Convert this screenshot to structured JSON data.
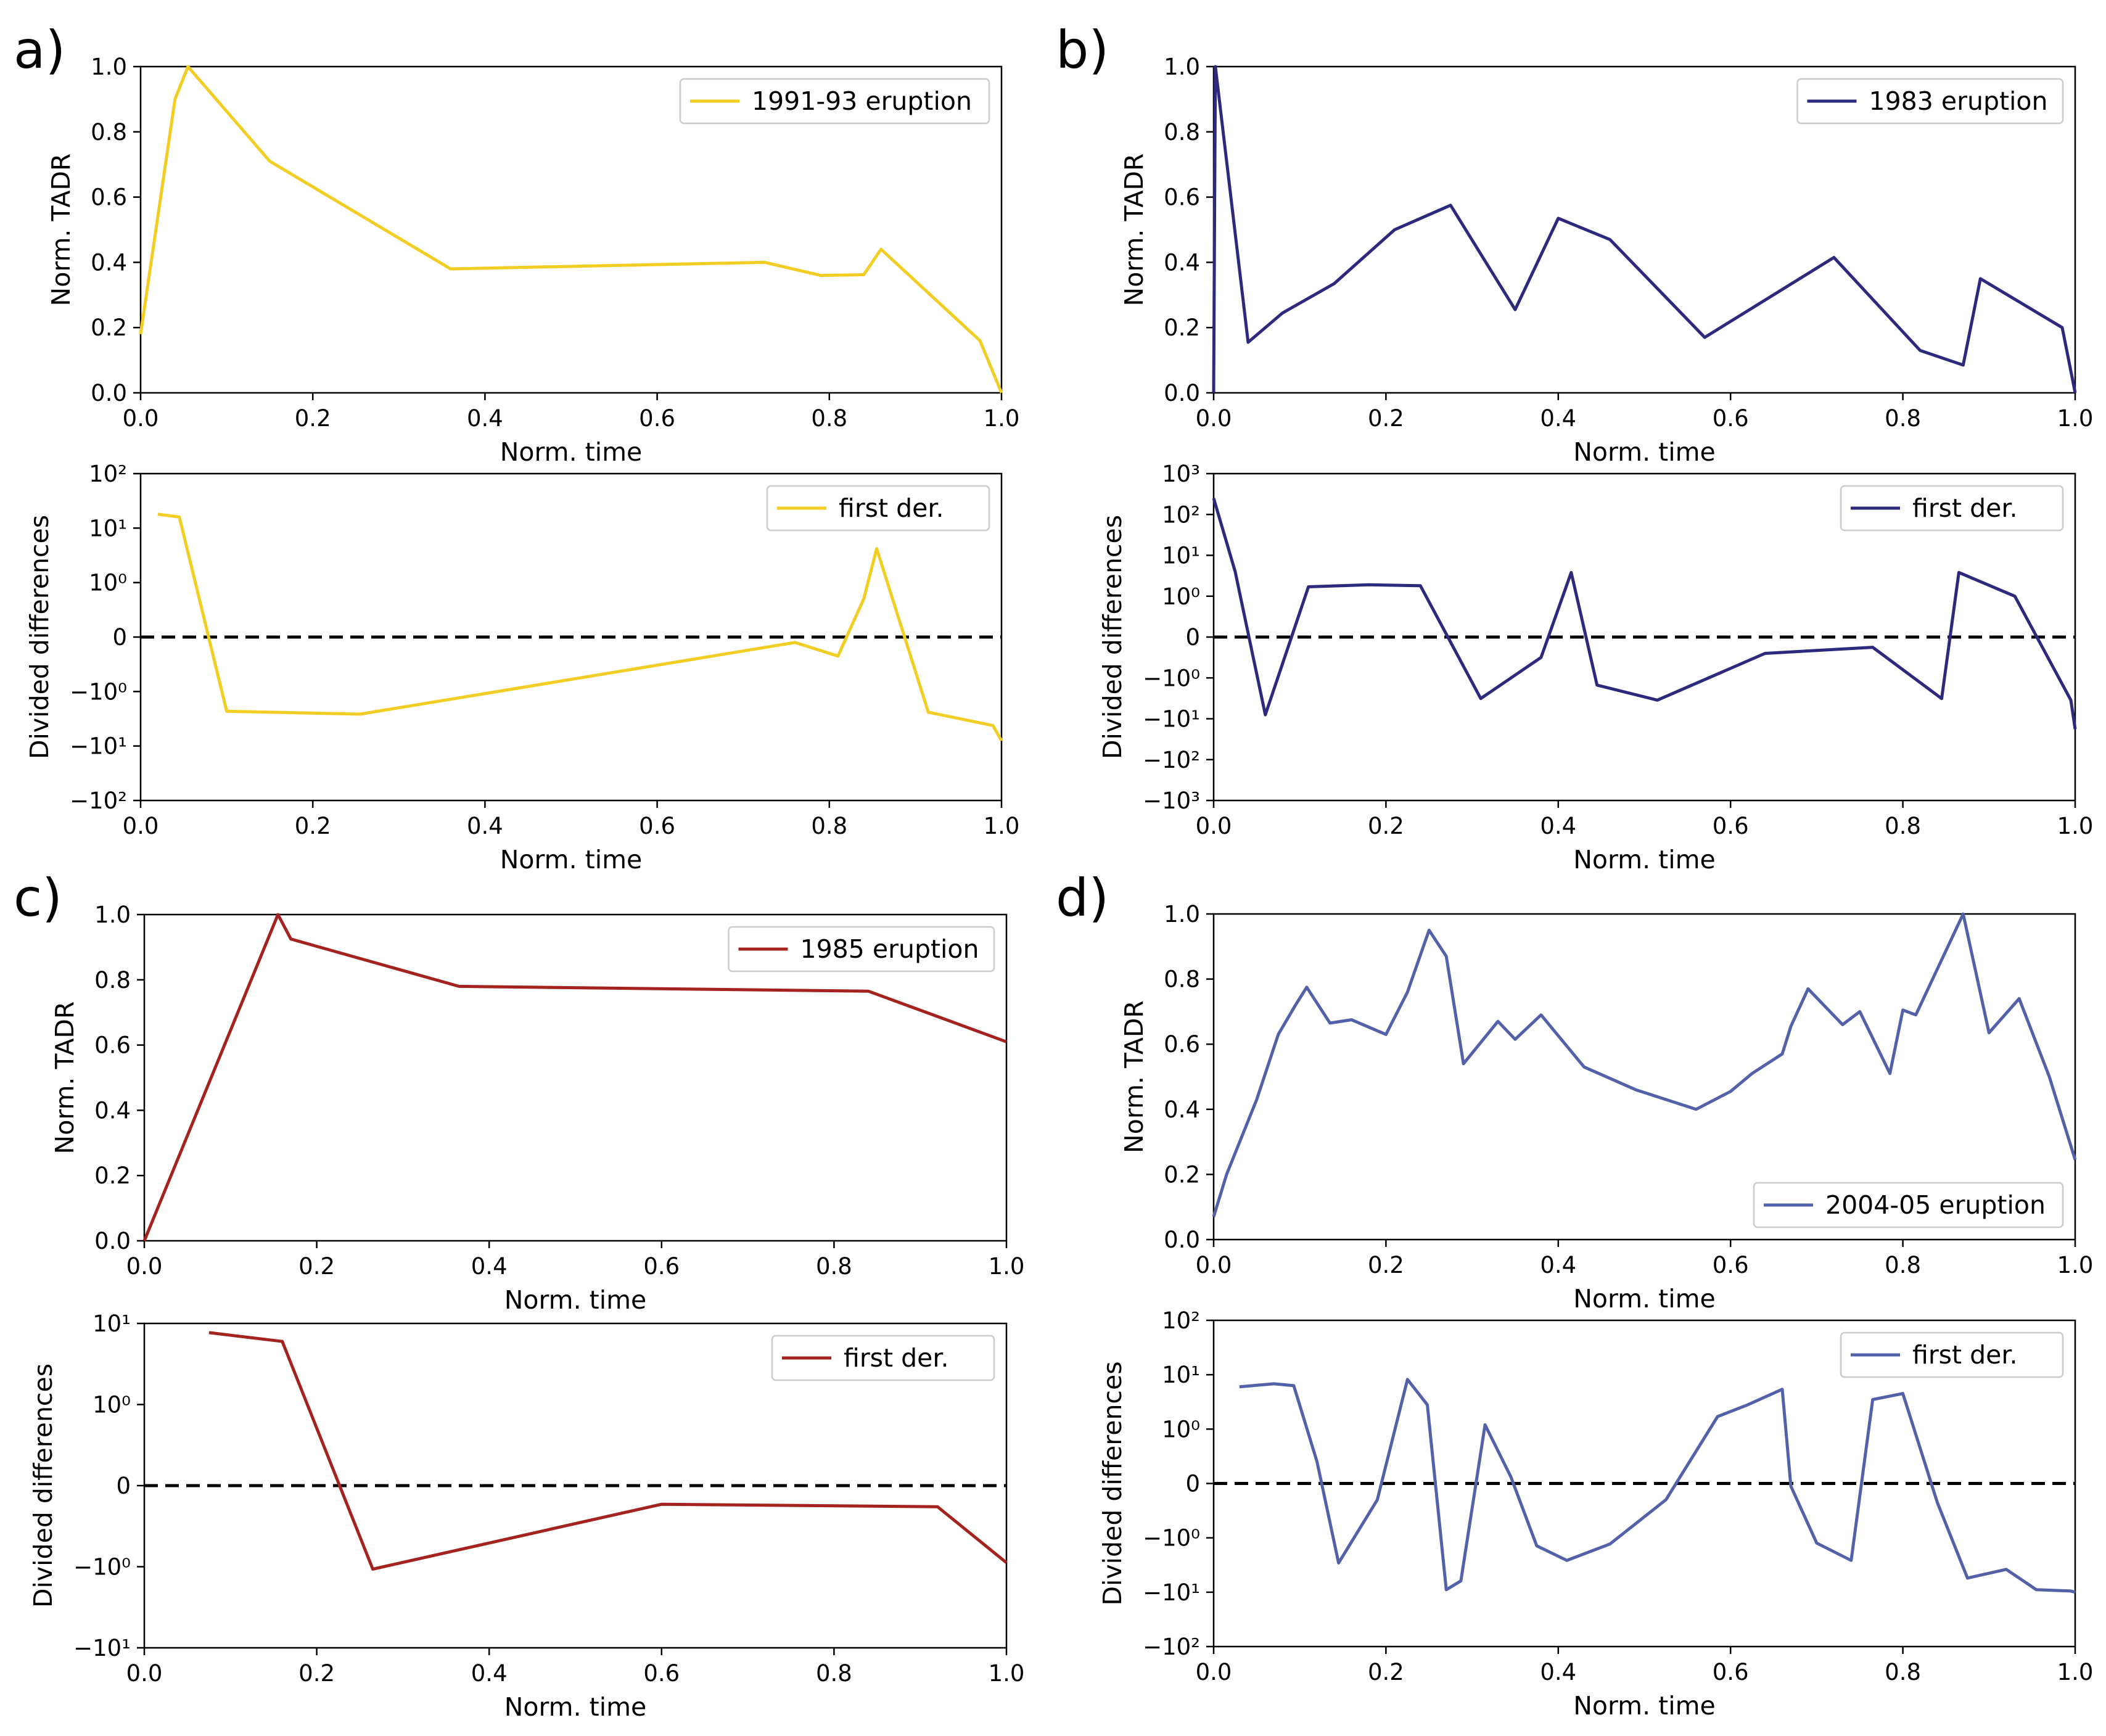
{
  "figure": {
    "axis_labels": {
      "x": "Norm. time",
      "y_tadr": "Norm. TADR",
      "y_der": "Divided differences"
    }
  },
  "panels": [
    {
      "label": "a)",
      "color": "#F2CE24",
      "top": {
        "legend": "1991-93 eruption",
        "legend_pos": "top-right",
        "x": [
          0.0,
          0.04,
          0.055,
          0.15,
          0.36,
          0.725,
          0.79,
          0.84,
          0.86,
          0.975,
          1.0
        ],
        "y": [
          0.18,
          0.9,
          1.0,
          0.71,
          0.38,
          0.4,
          0.36,
          0.362,
          0.44,
          0.16,
          0.0
        ]
      },
      "bottom": {
        "legend": "first der.",
        "legend_pos": "top-right",
        "ticks": [
          -100,
          -10,
          -1,
          0,
          1,
          10,
          100
        ],
        "tick_labels": [
          "−10²",
          "−10¹",
          "−10⁰",
          "0",
          "10⁰",
          "10¹",
          "10²"
        ],
        "ylim": [
          -100,
          100
        ],
        "x": [
          0.02,
          0.045,
          0.1,
          0.255,
          0.76,
          0.81,
          0.84,
          0.855,
          0.915,
          0.99,
          1.0
        ],
        "y": [
          18,
          16,
          -2.3,
          -2.6,
          -0.1,
          -0.35,
          0.7,
          4.2,
          -2.4,
          -4.2,
          -8
        ]
      }
    },
    {
      "label": "b)",
      "color": "#2D2A7E",
      "top": {
        "legend": "1983 eruption",
        "legend_pos": "top-right",
        "x": [
          0.0,
          0.002,
          0.04,
          0.08,
          0.14,
          0.21,
          0.275,
          0.35,
          0.4,
          0.46,
          0.57,
          0.72,
          0.82,
          0.87,
          0.89,
          0.985,
          1.0
        ],
        "y": [
          0.0,
          1.0,
          0.155,
          0.245,
          0.335,
          0.5,
          0.575,
          0.255,
          0.535,
          0.47,
          0.17,
          0.415,
          0.13,
          0.085,
          0.35,
          0.2,
          0.0
        ]
      },
      "bottom": {
        "legend": "first der.",
        "legend_pos": "top-right",
        "ticks": [
          -1000,
          -100,
          -10,
          -1,
          0,
          1,
          10,
          100,
          1000
        ],
        "tick_labels": [
          "−10³",
          "−10²",
          "−10¹",
          "−10⁰",
          "0",
          "10⁰",
          "10¹",
          "10²",
          "10³"
        ],
        "ylim": [
          -1000,
          1000
        ],
        "x": [
          0.0,
          0.025,
          0.06,
          0.11,
          0.18,
          0.24,
          0.31,
          0.38,
          0.415,
          0.445,
          0.515,
          0.64,
          0.765,
          0.845,
          0.865,
          0.93,
          0.995,
          1.0
        ],
        "y": [
          250,
          4,
          -8,
          1.7,
          1.9,
          1.8,
          -3.2,
          -0.5,
          3.8,
          -1.5,
          -3.5,
          -0.4,
          -0.25,
          -3.2,
          3.8,
          1.0,
          -3.5,
          -18
        ]
      }
    },
    {
      "label": "c)",
      "color": "#A4231F",
      "top": {
        "legend": "1985 eruption",
        "legend_pos": "top-right",
        "x": [
          0.0,
          0.155,
          0.17,
          0.365,
          0.84,
          1.0
        ],
        "y": [
          0.0,
          1.0,
          0.925,
          0.78,
          0.765,
          0.61
        ]
      },
      "bottom": {
        "legend": "first der.",
        "legend_pos": "top-right",
        "ticks": [
          -10,
          -1,
          0,
          1,
          10
        ],
        "tick_labels": [
          "−10¹",
          "−10⁰",
          "0",
          "10⁰",
          "10¹"
        ],
        "ylim": [
          -10,
          10
        ],
        "x": [
          0.075,
          0.16,
          0.265,
          0.6,
          0.92,
          1.0
        ],
        "y": [
          7.7,
          6.0,
          -1.07,
          -0.23,
          -0.26,
          -0.95
        ]
      }
    },
    {
      "label": "d)",
      "color": "#5261A8",
      "top": {
        "legend": "2004-05 eruption",
        "legend_pos": "bottom-right",
        "x": [
          0.0,
          0.015,
          0.05,
          0.075,
          0.095,
          0.108,
          0.135,
          0.16,
          0.2,
          0.225,
          0.25,
          0.27,
          0.29,
          0.33,
          0.35,
          0.38,
          0.43,
          0.49,
          0.56,
          0.6,
          0.625,
          0.66,
          0.67,
          0.69,
          0.73,
          0.75,
          0.785,
          0.8,
          0.815,
          0.87,
          0.9,
          0.935,
          0.97,
          1.0
        ],
        "y": [
          0.07,
          0.2,
          0.43,
          0.63,
          0.72,
          0.775,
          0.665,
          0.675,
          0.63,
          0.76,
          0.95,
          0.87,
          0.54,
          0.67,
          0.615,
          0.69,
          0.53,
          0.46,
          0.4,
          0.455,
          0.51,
          0.57,
          0.655,
          0.77,
          0.66,
          0.7,
          0.51,
          0.705,
          0.69,
          1.0,
          0.635,
          0.74,
          0.5,
          0.245
        ]
      },
      "bottom": {
        "legend": "first der.",
        "legend_pos": "top-right",
        "ticks": [
          -100,
          -10,
          -1,
          0,
          1,
          10,
          100
        ],
        "tick_labels": [
          "−10²",
          "−10¹",
          "−10⁰",
          "0",
          "10⁰",
          "10¹",
          "10²"
        ],
        "ylim": [
          -100,
          100
        ],
        "x": [
          0.03,
          0.07,
          0.093,
          0.12,
          0.145,
          0.19,
          0.225,
          0.248,
          0.27,
          0.287,
          0.315,
          0.345,
          0.375,
          0.41,
          0.46,
          0.525,
          0.585,
          0.62,
          0.66,
          0.67,
          0.7,
          0.74,
          0.765,
          0.8,
          0.84,
          0.875,
          0.92,
          0.955,
          0.995,
          1.0
        ],
        "y": [
          6,
          6.8,
          6.3,
          0.4,
          -2.9,
          -0.3,
          8.2,
          2.8,
          -9,
          -6.2,
          1.2,
          0.12,
          -1.4,
          -2.6,
          -1.3,
          -0.3,
          1.7,
          2.8,
          5.4,
          -0.05,
          -1.25,
          -2.6,
          3.5,
          4.5,
          -0.35,
          -5.5,
          -3.8,
          -9,
          -9.5,
          -10
        ]
      }
    }
  ]
}
